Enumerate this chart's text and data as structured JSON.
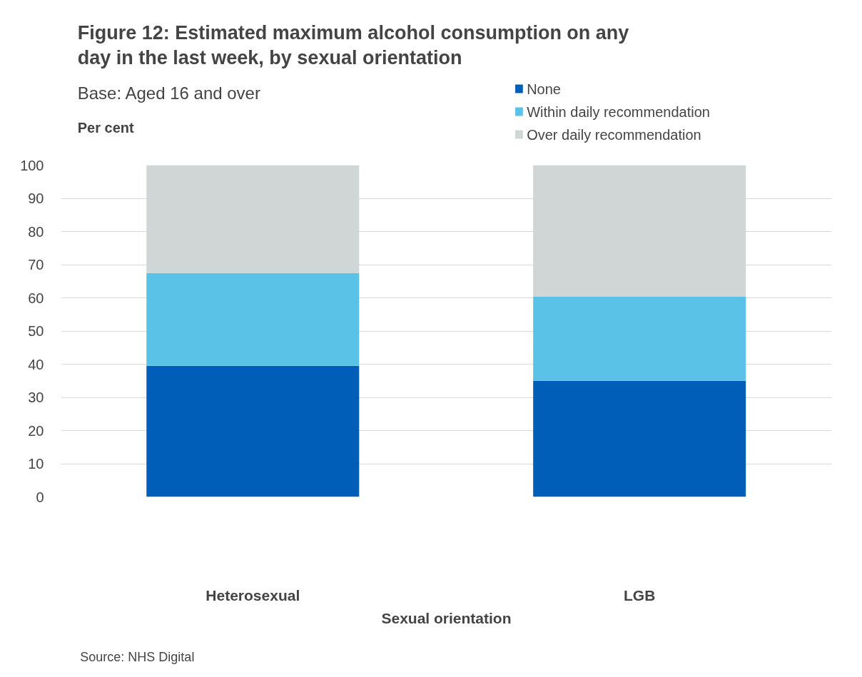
{
  "chart_data": {
    "type": "bar",
    "stacked": true,
    "title": "Figure 12: Estimated maximum alcohol consumption on any day in the last week, by sexual orientation",
    "subtitle": "Base: Aged 16 and over",
    "ylabel": "Per cent",
    "xlabel": "Sexual orientation",
    "categories": [
      "Heterosexual",
      "LGB"
    ],
    "series": [
      {
        "name": "None",
        "color": "#005eb8",
        "values": [
          39.5,
          35.0
        ]
      },
      {
        "name": "Within daily recommendation",
        "color": "#5bc2e7",
        "values": [
          28.0,
          25.3
        ]
      },
      {
        "name": "Over daily recommendation",
        "color": "#d0d5d5",
        "values": [
          32.5,
          39.7
        ]
      }
    ],
    "ylim": [
      0,
      100
    ],
    "yticks": [
      0,
      10,
      20,
      30,
      40,
      50,
      60,
      70,
      80,
      90,
      100
    ],
    "grid": "y",
    "legend": "top right",
    "annotations": [
      "Source: NHS Digital"
    ]
  }
}
